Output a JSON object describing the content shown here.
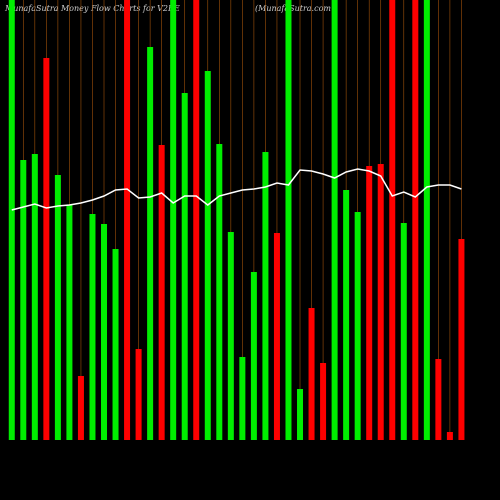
{
  "chart_data": {
    "type": "bar",
    "title": "MunafaSutra  Money Flow  Charts for V2BE",
    "subtitle": "(MunafaSutra.com",
    "categories": [
      null,
      null,
      null,
      null,
      null,
      null,
      null,
      null,
      null,
      null,
      null,
      null,
      null,
      null,
      null,
      null,
      null,
      null,
      null,
      null,
      null,
      null,
      null,
      null,
      null,
      null,
      null,
      null,
      null,
      null,
      null,
      null,
      null,
      null,
      null,
      null,
      null,
      null,
      null,
      null
    ],
    "values": [
      440,
      280,
      286,
      382,
      265,
      235,
      64,
      226,
      216,
      191,
      440,
      91,
      393,
      295,
      440,
      347,
      440,
      369,
      296,
      208,
      83,
      168,
      288,
      207,
      440,
      51,
      132,
      77,
      440,
      250,
      228,
      274,
      276,
      440,
      217,
      440,
      440,
      81,
      8,
      201
    ],
    "colors": [
      "#00ee00",
      "#00ee00",
      "#00ee00",
      "#ff0000",
      "#00ee00",
      "#00ee00",
      "#ff0000",
      "#00ee00",
      "#00ee00",
      "#00ee00",
      "#ff0000",
      "#ff0000",
      "#00ee00",
      "#ff0000",
      "#00ee00",
      "#00ee00",
      "#ff0000",
      "#00ee00",
      "#00ee00",
      "#00ee00",
      "#00ee00",
      "#00ee00",
      "#00ee00",
      "#ff0000",
      "#00ee00",
      "#00ee00",
      "#ff0000",
      "#ff0000",
      "#00ee00",
      "#00ee00",
      "#00ee00",
      "#ff0000",
      "#ff0000",
      "#ff0000",
      "#00ee00",
      "#ff0000",
      "#00ee00",
      "#ff0000",
      "#ff0000",
      "#ff0000"
    ],
    "line": {
      "color": "#ffffff",
      "values": [
        230,
        233,
        236,
        232,
        234,
        235,
        237,
        240,
        244,
        250,
        251,
        242,
        243,
        247,
        237,
        244,
        244,
        235,
        244,
        247,
        250,
        251,
        253,
        257,
        255,
        270,
        269,
        266,
        262,
        268,
        271,
        269,
        264,
        244,
        248,
        243,
        253,
        255,
        255,
        251
      ]
    },
    "ylim": [
      0,
      440
    ],
    "gridline_color": "#a0520a"
  }
}
